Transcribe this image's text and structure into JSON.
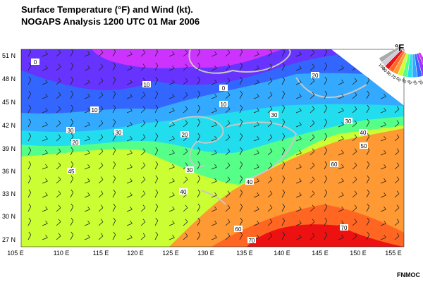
{
  "header": {
    "title": "Surface Temperature (°F) and Wind (kt).",
    "subtitle": "NOGAPS Analysis 1200 UTC 01 Mar 2006"
  },
  "map": {
    "latitude_labels": [
      "51 N",
      "48 N",
      "45 N",
      "42 N",
      "39 N",
      "36 N",
      "33 N",
      "30 N",
      "27 N"
    ],
    "longitude_labels": [
      "105 E",
      "110 E",
      "115 E",
      "120 E",
      "125 E",
      "130 E",
      "135 E",
      "140 E",
      "145 E",
      "150 E",
      "155 E"
    ],
    "contour_labels": [
      "0",
      "10",
      "0",
      "20",
      "10",
      "10",
      "30",
      "30",
      "30",
      "20",
      "30",
      "20",
      "40",
      "50",
      "30",
      "45",
      "40",
      "40",
      "60",
      "60",
      "70",
      "70"
    ]
  },
  "legend": {
    "unit": "°F",
    "labels": [
      "100",
      "90",
      "80",
      "70",
      "60",
      "50",
      "40",
      "30",
      "20",
      "10",
      "0"
    ]
  },
  "footer": {
    "credit": "FNMOC"
  }
}
